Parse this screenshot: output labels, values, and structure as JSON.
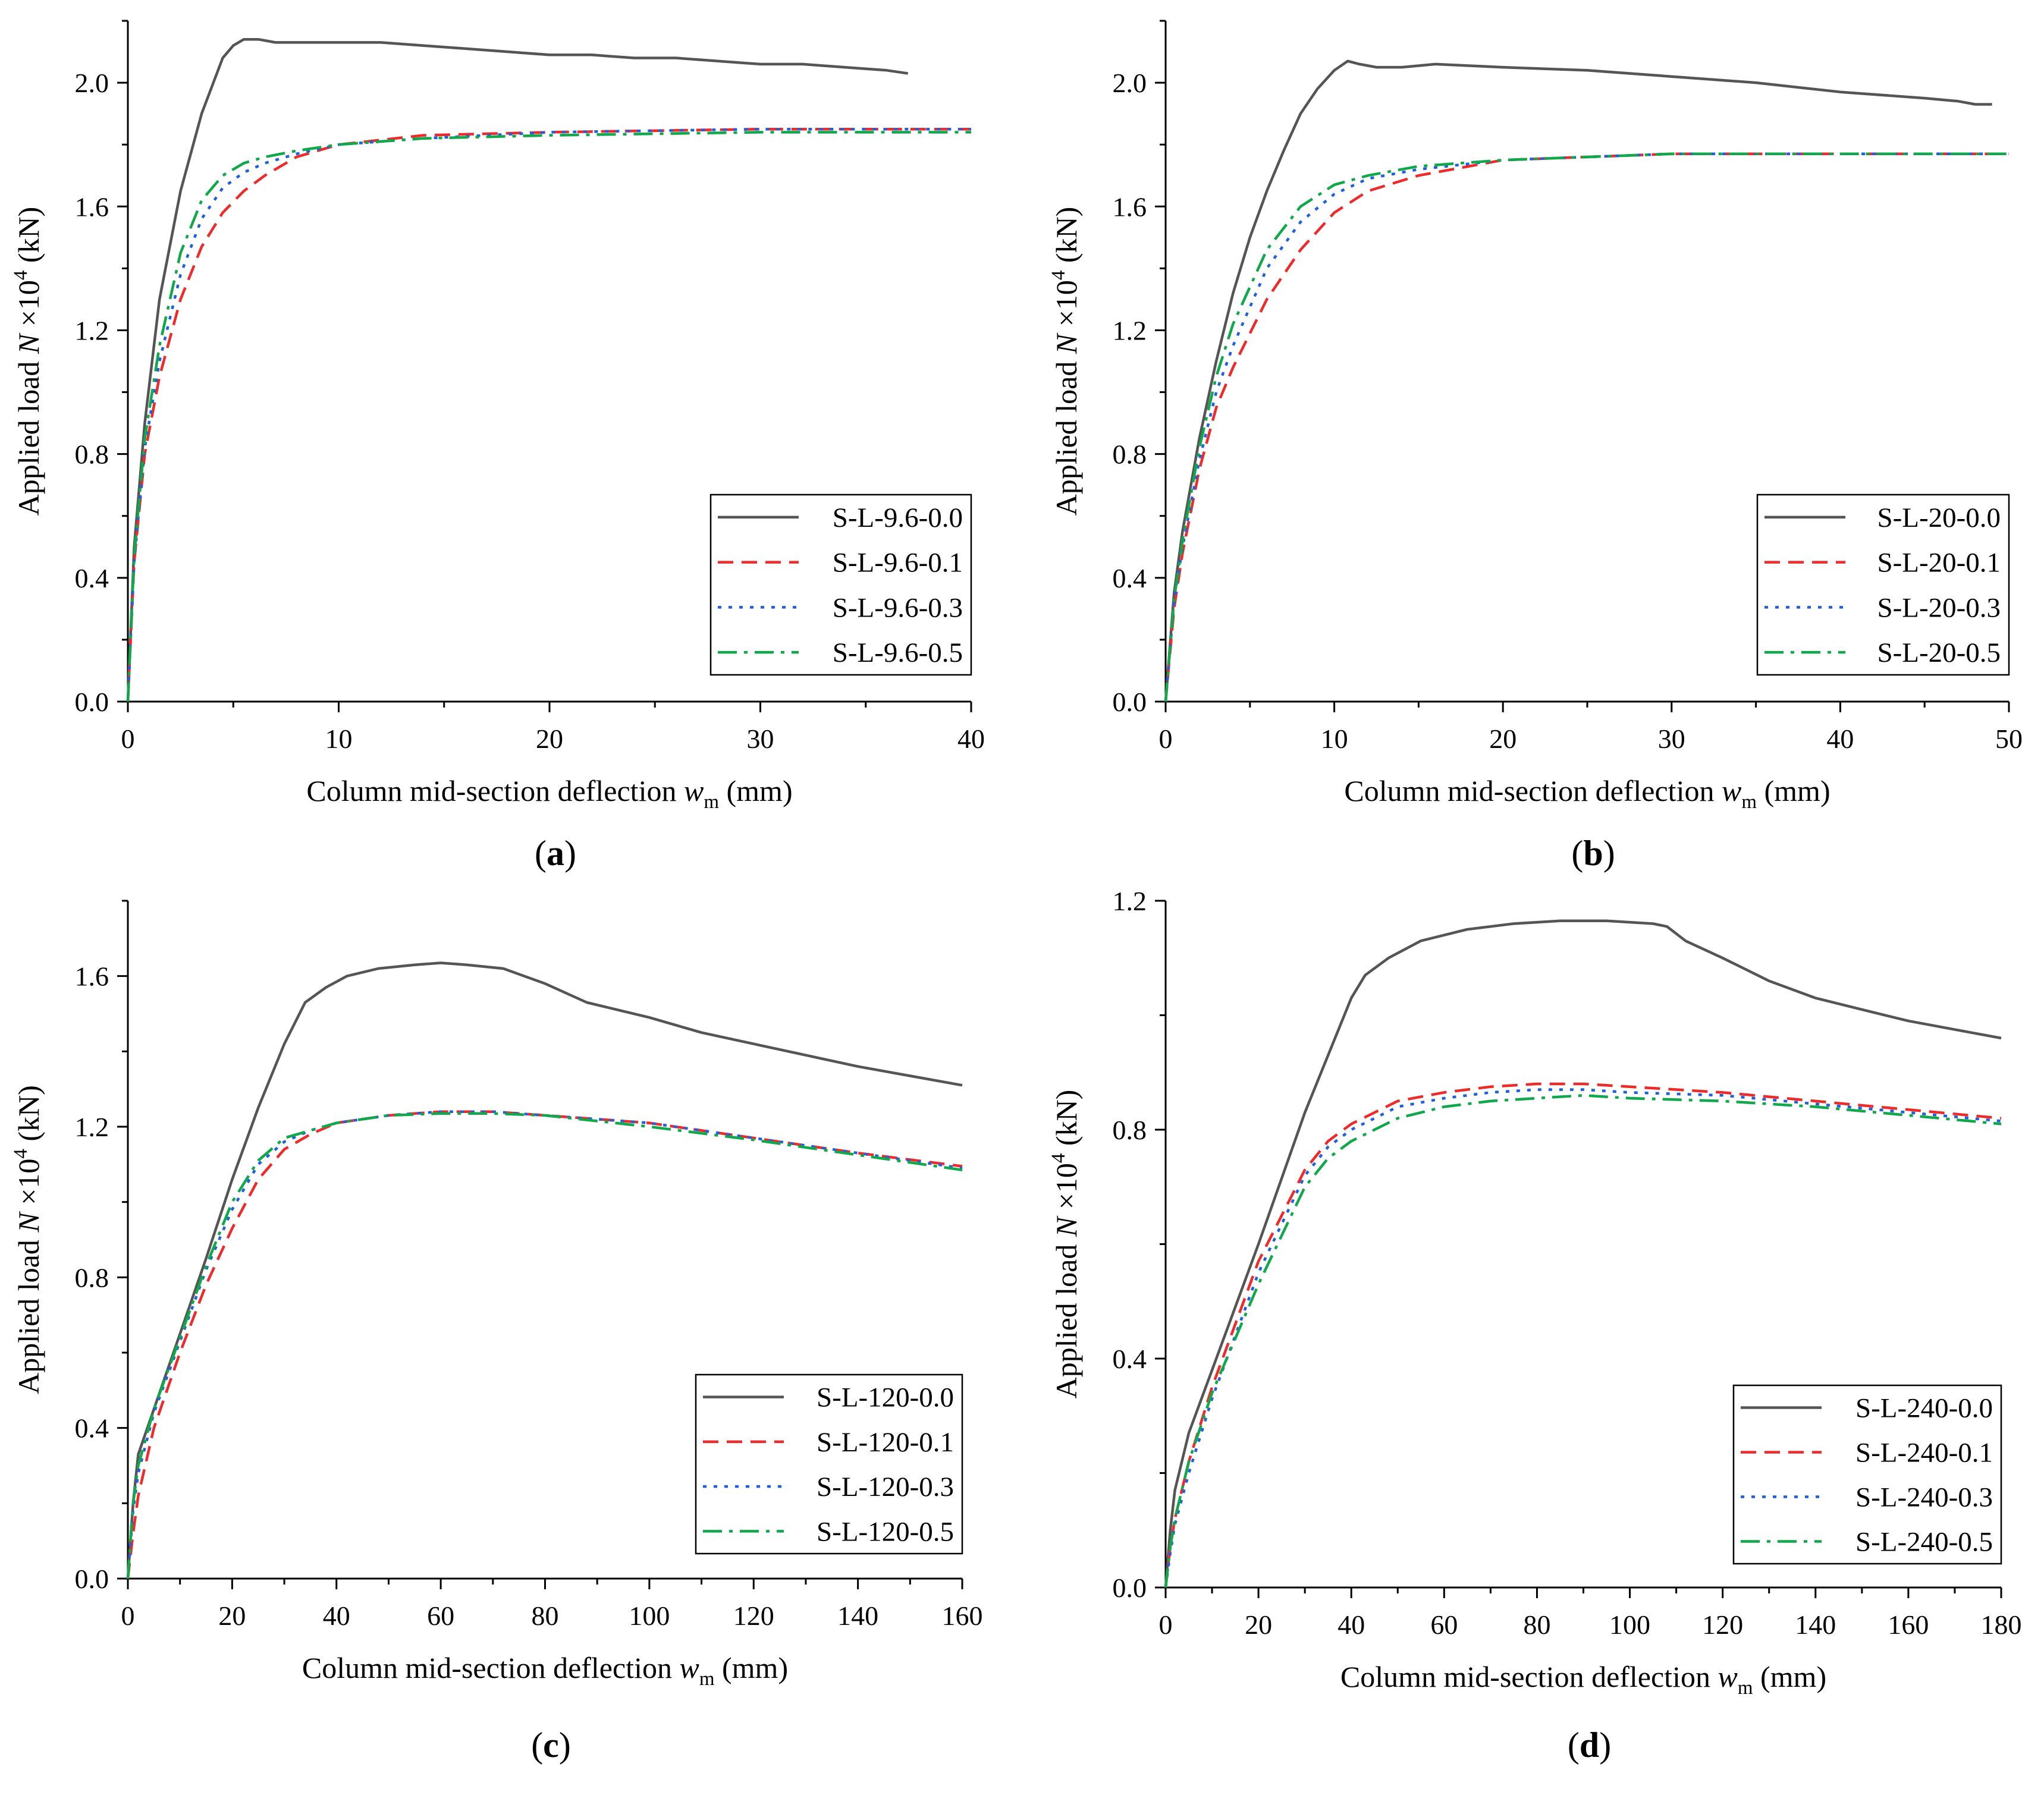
{
  "figure": {
    "colors": {
      "axis": "#000000",
      "series": [
        "#555555",
        "#ee2b2b",
        "#1f5fe0",
        "#10a84a"
      ]
    },
    "ylabel_prefix": "Applied load ",
    "ylabel_var": "N",
    "ylabel_times": " ×10",
    "ylabel_exp": "4",
    "ylabel_unit": " (kN)",
    "xlabel_prefix": "Column mid-section deflection ",
    "xlabel_var": "w",
    "xlabel_sub": "m",
    "xlabel_unit": " (mm)"
  },
  "chart_data": [
    {
      "type": "line",
      "panel_label": "a",
      "xlim": [
        0,
        40
      ],
      "ylim": [
        0,
        2.2
      ],
      "xticks": [
        0,
        10,
        20,
        30,
        40
      ],
      "yticks": [
        0.0,
        0.4,
        0.8,
        1.2,
        1.6,
        2.0
      ],
      "xtick_labels": [
        "0",
        "10",
        "20",
        "30",
        "40"
      ],
      "ytick_labels": [
        "0.0",
        "0.4",
        "0.8",
        "1.2",
        "1.6",
        "2.0"
      ],
      "legend_position": "bottom-right",
      "series": [
        {
          "name": "S-L-9.6-0.0",
          "style": "solid",
          "x": [
            0,
            0.3,
            0.8,
            1.5,
            2.5,
            3.5,
            4.5,
            5.0,
            5.5,
            6.2,
            7.0,
            8,
            10,
            12,
            14,
            16,
            18,
            20,
            22,
            24,
            26,
            28,
            30,
            32,
            34,
            36,
            37
          ],
          "y": [
            0,
            0.5,
            0.9,
            1.3,
            1.65,
            1.9,
            2.08,
            2.12,
            2.14,
            2.14,
            2.13,
            2.13,
            2.13,
            2.13,
            2.12,
            2.11,
            2.1,
            2.09,
            2.09,
            2.08,
            2.08,
            2.07,
            2.06,
            2.06,
            2.05,
            2.04,
            2.03
          ]
        },
        {
          "name": "S-L-9.6-0.1",
          "style": "dash",
          "x": [
            0,
            0.3,
            0.8,
            1.5,
            2.5,
            3.5,
            4.5,
            5.5,
            6.5,
            8,
            10,
            14,
            20,
            30,
            40
          ],
          "y": [
            0,
            0.45,
            0.8,
            1.05,
            1.3,
            1.47,
            1.58,
            1.65,
            1.7,
            1.76,
            1.8,
            1.83,
            1.84,
            1.85,
            1.85
          ]
        },
        {
          "name": "S-L-9.6-0.3",
          "style": "dot",
          "x": [
            0,
            0.3,
            0.8,
            1.5,
            2.5,
            3.5,
            4.5,
            5.5,
            6.5,
            8,
            10,
            14,
            20,
            30,
            40
          ],
          "y": [
            0,
            0.45,
            0.82,
            1.1,
            1.38,
            1.56,
            1.66,
            1.71,
            1.74,
            1.77,
            1.8,
            1.82,
            1.84,
            1.85,
            1.85
          ]
        },
        {
          "name": "S-L-9.6-0.5",
          "style": "dashdot",
          "x": [
            0,
            0.3,
            0.8,
            1.5,
            2.5,
            3.5,
            4.5,
            5.5,
            6.5,
            8,
            10,
            14,
            20,
            30,
            40
          ],
          "y": [
            0,
            0.47,
            0.85,
            1.15,
            1.45,
            1.62,
            1.7,
            1.74,
            1.76,
            1.78,
            1.8,
            1.82,
            1.83,
            1.84,
            1.84
          ]
        }
      ]
    },
    {
      "type": "line",
      "panel_label": "b",
      "xlim": [
        0,
        50
      ],
      "ylim": [
        0,
        2.2
      ],
      "xticks": [
        0,
        10,
        20,
        30,
        40,
        50
      ],
      "yticks": [
        0.0,
        0.4,
        0.8,
        1.2,
        1.6,
        2.0
      ],
      "xtick_labels": [
        "0",
        "10",
        "20",
        "30",
        "40",
        "50"
      ],
      "ytick_labels": [
        "0.0",
        "0.4",
        "0.8",
        "1.2",
        "1.6",
        "2.0"
      ],
      "legend_position": "bottom-right",
      "series": [
        {
          "name": "S-L-20-0.0",
          "style": "solid",
          "x": [
            0,
            0.5,
            1,
            2,
            3,
            4,
            5,
            6,
            7,
            8,
            9,
            10,
            10.8,
            11.5,
            12.5,
            14,
            16,
            20,
            25,
            30,
            35,
            40,
            45,
            47,
            48,
            49
          ],
          "y": [
            0,
            0.35,
            0.55,
            0.85,
            1.1,
            1.32,
            1.5,
            1.65,
            1.78,
            1.9,
            1.98,
            2.04,
            2.07,
            2.06,
            2.05,
            2.05,
            2.06,
            2.05,
            2.04,
            2.02,
            2.0,
            1.97,
            1.95,
            1.94,
            1.93,
            1.93
          ]
        },
        {
          "name": "S-L-20-0.1",
          "style": "dash",
          "x": [
            0,
            0.5,
            1,
            2,
            3,
            4,
            6,
            8,
            10,
            12,
            15,
            20,
            30,
            40,
            50
          ],
          "y": [
            0,
            0.3,
            0.48,
            0.75,
            0.95,
            1.08,
            1.3,
            1.46,
            1.58,
            1.65,
            1.7,
            1.75,
            1.77,
            1.77,
            1.77
          ]
        },
        {
          "name": "S-L-20-0.3",
          "style": "dot",
          "x": [
            0,
            0.5,
            1,
            2,
            3,
            4,
            6,
            8,
            10,
            12,
            15,
            20,
            30,
            40,
            50
          ],
          "y": [
            0,
            0.32,
            0.5,
            0.78,
            1.0,
            1.15,
            1.4,
            1.55,
            1.64,
            1.69,
            1.72,
            1.75,
            1.77,
            1.77,
            1.77
          ]
        },
        {
          "name": "S-L-20-0.5",
          "style": "dashdot",
          "x": [
            0,
            0.5,
            1,
            2,
            3,
            4,
            6,
            8,
            10,
            12,
            15,
            20,
            30,
            40,
            50
          ],
          "y": [
            0,
            0.33,
            0.52,
            0.82,
            1.05,
            1.22,
            1.46,
            1.6,
            1.67,
            1.7,
            1.73,
            1.75,
            1.77,
            1.77,
            1.77
          ]
        }
      ]
    },
    {
      "type": "line",
      "panel_label": "c",
      "xlim": [
        0,
        160
      ],
      "ylim": [
        0,
        1.8
      ],
      "xticks": [
        0,
        20,
        40,
        60,
        80,
        100,
        120,
        140,
        160
      ],
      "yticks": [
        0.0,
        0.4,
        0.8,
        1.2,
        1.6
      ],
      "xtick_labels": [
        "0",
        "20",
        "40",
        "60",
        "80",
        "100",
        "120",
        "140",
        "160"
      ],
      "ytick_labels": [
        "0.0",
        "0.4",
        "0.8",
        "1.2",
        "1.6"
      ],
      "legend_position": "bottom-right",
      "series": [
        {
          "name": "S-L-120-0.0",
          "style": "solid",
          "x": [
            0,
            1,
            2,
            5,
            10,
            15,
            20,
            25,
            30,
            34,
            38,
            42,
            48,
            55,
            60,
            65,
            72,
            80,
            88,
            100,
            110,
            120,
            130,
            140,
            150,
            160
          ],
          "y": [
            0,
            0.2,
            0.33,
            0.45,
            0.65,
            0.85,
            1.06,
            1.25,
            1.42,
            1.53,
            1.57,
            1.6,
            1.62,
            1.63,
            1.635,
            1.63,
            1.62,
            1.58,
            1.53,
            1.49,
            1.45,
            1.42,
            1.39,
            1.36,
            1.335,
            1.31
          ]
        },
        {
          "name": "S-L-120-0.1",
          "style": "dash",
          "x": [
            0,
            1,
            2,
            5,
            10,
            15,
            20,
            25,
            30,
            35,
            40,
            50,
            60,
            70,
            80,
            90,
            100,
            120,
            140,
            160
          ],
          "y": [
            0,
            0.12,
            0.22,
            0.4,
            0.6,
            0.78,
            0.93,
            1.06,
            1.14,
            1.18,
            1.21,
            1.23,
            1.24,
            1.24,
            1.23,
            1.22,
            1.21,
            1.17,
            1.13,
            1.095
          ]
        },
        {
          "name": "S-L-120-0.3",
          "style": "dot",
          "x": [
            0,
            1,
            2,
            5,
            10,
            15,
            20,
            25,
            30,
            35,
            40,
            50,
            60,
            70,
            80,
            90,
            100,
            120,
            140,
            160
          ],
          "y": [
            0,
            0.18,
            0.28,
            0.44,
            0.63,
            0.82,
            0.98,
            1.1,
            1.16,
            1.19,
            1.21,
            1.23,
            1.24,
            1.24,
            1.23,
            1.22,
            1.21,
            1.17,
            1.13,
            1.09
          ]
        },
        {
          "name": "S-L-120-0.5",
          "style": "dashdot",
          "x": [
            0,
            1,
            2,
            5,
            10,
            15,
            20,
            25,
            30,
            35,
            40,
            50,
            60,
            70,
            80,
            90,
            100,
            120,
            140,
            160
          ],
          "y": [
            0,
            0.2,
            0.3,
            0.45,
            0.64,
            0.83,
            1.0,
            1.11,
            1.17,
            1.19,
            1.21,
            1.23,
            1.235,
            1.235,
            1.23,
            1.215,
            1.2,
            1.165,
            1.125,
            1.085
          ]
        }
      ]
    },
    {
      "type": "line",
      "panel_label": "d",
      "xlim": [
        0,
        180
      ],
      "ylim": [
        0,
        1.2
      ],
      "xticks": [
        0,
        20,
        40,
        60,
        80,
        100,
        120,
        140,
        160,
        180
      ],
      "yticks": [
        0.0,
        0.4,
        0.8,
        1.2
      ],
      "xtick_labels": [
        "0",
        "20",
        "40",
        "60",
        "80",
        "100",
        "120",
        "140",
        "160",
        "180"
      ],
      "ytick_labels": [
        "0.0",
        "0.4",
        "0.8",
        "1.2"
      ],
      "legend_position": "bottom-right",
      "series": [
        {
          "name": "S-L-240-0.0",
          "style": "solid",
          "x": [
            0,
            1,
            2,
            5,
            10,
            20,
            30,
            40,
            43,
            48,
            55,
            65,
            75,
            85,
            95,
            105,
            108,
            112,
            120,
            130,
            140,
            150,
            160,
            170,
            180
          ],
          "y": [
            0,
            0.1,
            0.17,
            0.27,
            0.38,
            0.6,
            0.83,
            1.03,
            1.07,
            1.1,
            1.13,
            1.15,
            1.16,
            1.165,
            1.165,
            1.16,
            1.155,
            1.13,
            1.1,
            1.06,
            1.03,
            1.01,
            0.99,
            0.975,
            0.96
          ]
        },
        {
          "name": "S-L-240-0.1",
          "style": "dash",
          "x": [
            0,
            1,
            2,
            5,
            10,
            20,
            30,
            35,
            40,
            45,
            50,
            60,
            70,
            80,
            90,
            100,
            120,
            140,
            160,
            180
          ],
          "y": [
            0,
            0.07,
            0.12,
            0.22,
            0.35,
            0.57,
            0.73,
            0.78,
            0.81,
            0.83,
            0.85,
            0.865,
            0.875,
            0.88,
            0.88,
            0.875,
            0.865,
            0.85,
            0.835,
            0.82
          ]
        },
        {
          "name": "S-L-240-0.3",
          "style": "dot",
          "x": [
            0,
            1,
            2,
            5,
            10,
            20,
            30,
            35,
            40,
            45,
            50,
            60,
            70,
            80,
            90,
            100,
            120,
            140,
            160,
            180
          ],
          "y": [
            0,
            0.06,
            0.11,
            0.2,
            0.33,
            0.55,
            0.72,
            0.77,
            0.8,
            0.82,
            0.84,
            0.855,
            0.865,
            0.87,
            0.87,
            0.865,
            0.86,
            0.845,
            0.83,
            0.815
          ]
        },
        {
          "name": "S-L-240-0.5",
          "style": "dashdot",
          "x": [
            0,
            1,
            2,
            5,
            10,
            20,
            30,
            35,
            40,
            45,
            50,
            60,
            70,
            80,
            90,
            100,
            120,
            140,
            160,
            180
          ],
          "y": [
            0,
            0.07,
            0.12,
            0.22,
            0.34,
            0.53,
            0.7,
            0.75,
            0.78,
            0.8,
            0.82,
            0.84,
            0.85,
            0.855,
            0.86,
            0.855,
            0.85,
            0.84,
            0.825,
            0.81
          ]
        }
      ]
    }
  ]
}
